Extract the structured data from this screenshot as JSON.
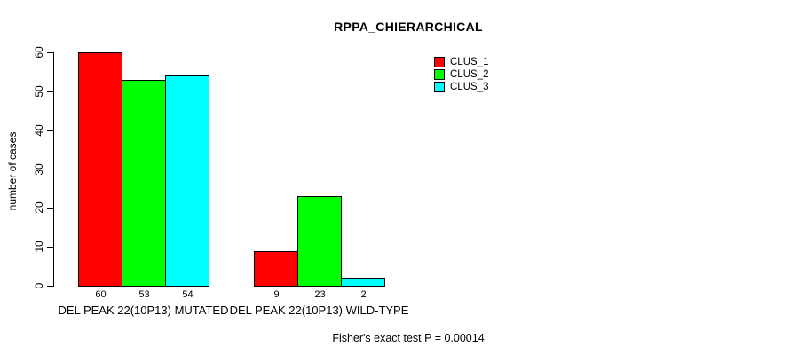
{
  "chart_data": {
    "type": "bar",
    "title": "RPPA_CHIERARCHICAL",
    "xlabel": "",
    "ylabel": "number of cases",
    "ylim": [
      0,
      60
    ],
    "yticks": [
      0,
      10,
      20,
      30,
      40,
      50,
      60
    ],
    "grid": false,
    "legend_position": "top-right-inside",
    "categories": [
      "DEL PEAK 22(10P13) MUTATED",
      "DEL PEAK 22(10P13) WILD-TYPE"
    ],
    "series": [
      {
        "name": "CLUS_1",
        "color": "#ff0000",
        "values": [
          60,
          9
        ]
      },
      {
        "name": "CLUS_2",
        "color": "#00ff00",
        "values": [
          53,
          23
        ]
      },
      {
        "name": "CLUS_3",
        "color": "#00ffff",
        "values": [
          54,
          2
        ]
      }
    ],
    "bar_value_labels": [
      [
        60,
        53,
        54
      ],
      [
        9,
        23,
        2
      ]
    ],
    "caption": "Fisher's exact test P = 0.00014"
  },
  "colors": {
    "background": "#ffffff",
    "axis": "#000000",
    "text": "#000000"
  }
}
